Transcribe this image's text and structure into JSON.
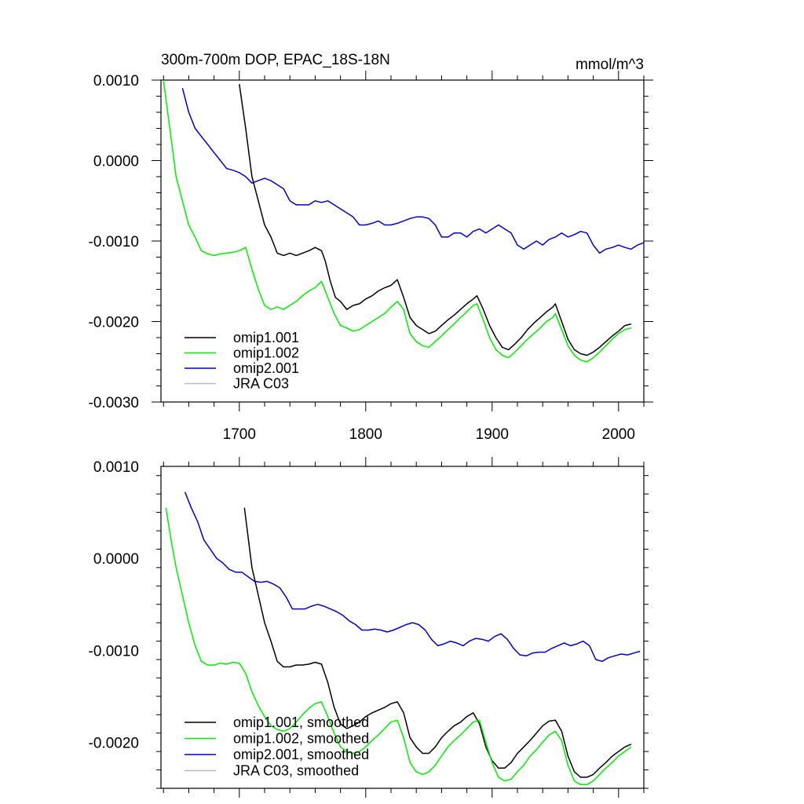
{
  "chart_data": [
    {
      "type": "line",
      "title": "300m-700m DOP, EPAC_18S-18N",
      "units": "mmol/m^3",
      "xlabel": "",
      "ylabel": "",
      "xlim": [
        1638,
        2020
      ],
      "ylim": [
        -0.003,
        0.001
      ],
      "x_ticks": [
        1700,
        1800,
        1900,
        2000
      ],
      "y_ticks": [
        "0.0010",
        "0.0000",
        "-0.0010",
        "-0.0020",
        "-0.0030"
      ],
      "y_tick_values": [
        0.001,
        0.0,
        -0.001,
        -0.002,
        -0.003
      ],
      "grid": false,
      "legend_position": "bottom-left",
      "series": [
        {
          "name": "omip1.001",
          "color": "#000000",
          "x": [
            1700,
            1705,
            1710,
            1715,
            1720,
            1725,
            1730,
            1735,
            1740,
            1745,
            1750,
            1755,
            1760,
            1765,
            1768,
            1772,
            1776,
            1780,
            1785,
            1790,
            1795,
            1800,
            1805,
            1810,
            1815,
            1820,
            1825,
            1830,
            1835,
            1840,
            1845,
            1850,
            1855,
            1860,
            1865,
            1870,
            1875,
            1880,
            1885,
            1888,
            1893,
            1898,
            1903,
            1908,
            1913,
            1918,
            1923,
            1928,
            1933,
            1938,
            1943,
            1948,
            1950,
            1955,
            1960,
            1965,
            1970,
            1975,
            1980,
            1985,
            1990,
            1995,
            2000,
            2005,
            2010
          ],
          "y": [
            0.00095,
            0.0004,
            -0.0002,
            -0.0005,
            -0.0008,
            -0.00095,
            -0.00115,
            -0.00118,
            -0.00115,
            -0.00118,
            -0.00115,
            -0.00112,
            -0.00108,
            -0.00112,
            -0.00125,
            -0.0015,
            -0.0017,
            -0.00175,
            -0.00185,
            -0.0018,
            -0.00178,
            -0.00172,
            -0.00168,
            -0.00162,
            -0.00158,
            -0.00155,
            -0.00148,
            -0.0017,
            -0.00195,
            -0.00205,
            -0.0021,
            -0.00215,
            -0.00212,
            -0.00205,
            -0.00198,
            -0.00192,
            -0.00185,
            -0.00178,
            -0.00172,
            -0.00168,
            -0.00185,
            -0.00205,
            -0.0022,
            -0.00232,
            -0.00235,
            -0.00228,
            -0.0022,
            -0.0021,
            -0.00202,
            -0.00195,
            -0.00188,
            -0.00182,
            -0.00178,
            -0.002,
            -0.00222,
            -0.00235,
            -0.0024,
            -0.00242,
            -0.00238,
            -0.00232,
            -0.00225,
            -0.00218,
            -0.00212,
            -0.00205,
            -0.00203
          ]
        },
        {
          "name": "omip1.002",
          "color": "#00ee00",
          "x": [
            1640,
            1645,
            1650,
            1655,
            1660,
            1665,
            1670,
            1675,
            1680,
            1685,
            1690,
            1695,
            1700,
            1705,
            1710,
            1715,
            1720,
            1725,
            1730,
            1735,
            1740,
            1745,
            1750,
            1755,
            1760,
            1765,
            1770,
            1775,
            1780,
            1785,
            1790,
            1795,
            1800,
            1805,
            1810,
            1815,
            1820,
            1825,
            1830,
            1835,
            1840,
            1845,
            1850,
            1855,
            1860,
            1865,
            1870,
            1875,
            1880,
            1885,
            1888,
            1893,
            1898,
            1903,
            1908,
            1913,
            1918,
            1923,
            1928,
            1933,
            1938,
            1943,
            1948,
            1950,
            1955,
            1960,
            1965,
            1970,
            1975,
            1980,
            1985,
            1990,
            1995,
            2000,
            2005,
            2010
          ],
          "y": [
            0.001,
            0.0004,
            -0.0002,
            -0.0005,
            -0.0008,
            -0.00095,
            -0.00112,
            -0.00116,
            -0.00118,
            -0.00116,
            -0.00115,
            -0.00114,
            -0.00112,
            -0.00108,
            -0.00135,
            -0.0016,
            -0.0018,
            -0.00185,
            -0.00182,
            -0.00185,
            -0.0018,
            -0.00175,
            -0.00168,
            -0.00162,
            -0.00158,
            -0.0015,
            -0.0017,
            -0.0019,
            -0.00205,
            -0.00208,
            -0.00212,
            -0.0021,
            -0.00205,
            -0.002,
            -0.00195,
            -0.0019,
            -0.00182,
            -0.00175,
            -0.00185,
            -0.00215,
            -0.00225,
            -0.0023,
            -0.00232,
            -0.00225,
            -0.00218,
            -0.0021,
            -0.00203,
            -0.00195,
            -0.00188,
            -0.0018,
            -0.00178,
            -0.00198,
            -0.0022,
            -0.00235,
            -0.00242,
            -0.00245,
            -0.00238,
            -0.0023,
            -0.00222,
            -0.00215,
            -0.00208,
            -0.002,
            -0.00195,
            -0.0019,
            -0.0021,
            -0.0023,
            -0.00242,
            -0.00248,
            -0.0025,
            -0.00245,
            -0.00238,
            -0.0023,
            -0.00222,
            -0.00215,
            -0.0021,
            -0.00208
          ]
        },
        {
          "name": "omip2.001",
          "color": "#0000cc",
          "x": [
            1655,
            1660,
            1665,
            1670,
            1675,
            1680,
            1685,
            1690,
            1695,
            1700,
            1705,
            1710,
            1715,
            1720,
            1725,
            1730,
            1735,
            1740,
            1745,
            1750,
            1755,
            1760,
            1765,
            1770,
            1775,
            1780,
            1785,
            1790,
            1795,
            1800,
            1805,
            1810,
            1815,
            1820,
            1825,
            1830,
            1835,
            1840,
            1845,
            1850,
            1855,
            1860,
            1865,
            1870,
            1875,
            1880,
            1885,
            1890,
            1895,
            1900,
            1905,
            1910,
            1915,
            1920,
            1925,
            1930,
            1935,
            1940,
            1945,
            1950,
            1955,
            1960,
            1965,
            1970,
            1975,
            1980,
            1985,
            1990,
            1995,
            2000,
            2005,
            2010,
            2015,
            2020
          ],
          "y": [
            0.0009,
            0.0006,
            0.0004,
            0.0003,
            0.0002,
            0.0001,
            0.0,
            -0.0001,
            -0.00012,
            -0.00015,
            -0.0002,
            -0.00028,
            -0.00025,
            -0.00022,
            -0.00025,
            -0.0003,
            -0.00035,
            -0.0005,
            -0.00055,
            -0.00055,
            -0.00055,
            -0.0005,
            -0.00052,
            -0.0005,
            -0.00055,
            -0.0006,
            -0.00065,
            -0.0007,
            -0.0008,
            -0.0008,
            -0.00078,
            -0.00075,
            -0.0008,
            -0.0008,
            -0.00078,
            -0.00075,
            -0.00072,
            -0.0007,
            -0.0007,
            -0.00072,
            -0.0008,
            -0.00095,
            -0.00095,
            -0.0009,
            -0.0009,
            -0.00095,
            -0.00088,
            -0.00085,
            -0.0009,
            -0.00085,
            -0.0008,
            -0.00085,
            -0.0009,
            -0.00105,
            -0.0011,
            -0.00105,
            -0.001,
            -0.00105,
            -0.00098,
            -0.00095,
            -0.0009,
            -0.00095,
            -0.00092,
            -0.00088,
            -0.0009,
            -0.00105,
            -0.00115,
            -0.0011,
            -0.00108,
            -0.00105,
            -0.00108,
            -0.0011,
            -0.00105,
            -0.00102
          ]
        },
        {
          "name": "JRA C03",
          "color": "#bbbbbb",
          "x": [],
          "y": []
        }
      ]
    },
    {
      "type": "line",
      "title": "",
      "xlabel": "",
      "ylabel": "",
      "xlim": [
        1638,
        2020
      ],
      "ylim": [
        -0.0025,
        0.001
      ],
      "x_ticks": [
        1700,
        1800,
        1900,
        2000
      ],
      "y_ticks": [
        "0.0010",
        "0.0000",
        "-0.0010",
        "-0.0020"
      ],
      "y_tick_values": [
        0.001,
        0.0,
        -0.001,
        -0.002
      ],
      "grid": false,
      "legend_position": "bottom-left",
      "series": [
        {
          "name": "omip1.001, smoothed",
          "color": "#000000",
          "x": [
            1704,
            1710,
            1715,
            1720,
            1725,
            1730,
            1735,
            1740,
            1745,
            1750,
            1755,
            1760,
            1765,
            1770,
            1775,
            1780,
            1785,
            1790,
            1795,
            1800,
            1805,
            1810,
            1815,
            1820,
            1825,
            1830,
            1835,
            1840,
            1845,
            1850,
            1855,
            1860,
            1865,
            1870,
            1875,
            1880,
            1885,
            1890,
            1895,
            1900,
            1905,
            1910,
            1915,
            1920,
            1925,
            1930,
            1935,
            1940,
            1945,
            1950,
            1955,
            1960,
            1965,
            1970,
            1975,
            1980,
            1985,
            1990,
            1995,
            2000,
            2005,
            2010
          ],
          "y": [
            0.00055,
            -0.0001,
            -0.0004,
            -0.0007,
            -0.0009,
            -0.00112,
            -0.00118,
            -0.00118,
            -0.00116,
            -0.00116,
            -0.00115,
            -0.00113,
            -0.00115,
            -0.00135,
            -0.00162,
            -0.0018,
            -0.00185,
            -0.00182,
            -0.00178,
            -0.00172,
            -0.00168,
            -0.00165,
            -0.00162,
            -0.00158,
            -0.00156,
            -0.00168,
            -0.00195,
            -0.00205,
            -0.00212,
            -0.00212,
            -0.00205,
            -0.00195,
            -0.00188,
            -0.00182,
            -0.00178,
            -0.00172,
            -0.00168,
            -0.0018,
            -0.00205,
            -0.0022,
            -0.00228,
            -0.00228,
            -0.00222,
            -0.00212,
            -0.00205,
            -0.00198,
            -0.0019,
            -0.00182,
            -0.00177,
            -0.00176,
            -0.00188,
            -0.00215,
            -0.00232,
            -0.00238,
            -0.00238,
            -0.00235,
            -0.00228,
            -0.00222,
            -0.00215,
            -0.0021,
            -0.00205,
            -0.00202
          ]
        },
        {
          "name": "omip1.002, smoothed",
          "color": "#00ee00",
          "x": [
            1642,
            1646,
            1650,
            1655,
            1660,
            1665,
            1670,
            1675,
            1680,
            1685,
            1690,
            1695,
            1700,
            1705,
            1710,
            1715,
            1720,
            1725,
            1730,
            1735,
            1740,
            1745,
            1750,
            1755,
            1760,
            1765,
            1770,
            1775,
            1780,
            1785,
            1790,
            1795,
            1800,
            1805,
            1810,
            1815,
            1820,
            1825,
            1830,
            1835,
            1840,
            1845,
            1850,
            1855,
            1860,
            1865,
            1870,
            1875,
            1880,
            1885,
            1890,
            1895,
            1900,
            1905,
            1910,
            1915,
            1920,
            1925,
            1930,
            1935,
            1940,
            1945,
            1950,
            1955,
            1960,
            1965,
            1970,
            1975,
            1980,
            1985,
            1990,
            1995,
            2000,
            2005,
            2010
          ],
          "y": [
            0.00055,
            0.0002,
            -0.0001,
            -0.0004,
            -0.0007,
            -0.00095,
            -0.00112,
            -0.00116,
            -0.00116,
            -0.00114,
            -0.00115,
            -0.00113,
            -0.00114,
            -0.00125,
            -0.00145,
            -0.0016,
            -0.00172,
            -0.00182,
            -0.00186,
            -0.00188,
            -0.00185,
            -0.00178,
            -0.0017,
            -0.00163,
            -0.00158,
            -0.00156,
            -0.00172,
            -0.0019,
            -0.00205,
            -0.0021,
            -0.00212,
            -0.0021,
            -0.00205,
            -0.00198,
            -0.00192,
            -0.00185,
            -0.00178,
            -0.00176,
            -0.00195,
            -0.00222,
            -0.00232,
            -0.00235,
            -0.00232,
            -0.00225,
            -0.00215,
            -0.00205,
            -0.00198,
            -0.00192,
            -0.00185,
            -0.00178,
            -0.00176,
            -0.002,
            -0.00222,
            -0.00238,
            -0.00242,
            -0.0024,
            -0.00232,
            -0.00225,
            -0.00215,
            -0.00208,
            -0.002,
            -0.00192,
            -0.00188,
            -0.00198,
            -0.00225,
            -0.00242,
            -0.00246,
            -0.00246,
            -0.00242,
            -0.00235,
            -0.00228,
            -0.00222,
            -0.00215,
            -0.0021,
            -0.00205
          ]
        },
        {
          "name": "omip2.001, smoothed",
          "color": "#0000cc",
          "x": [
            1657,
            1662,
            1667,
            1672,
            1677,
            1682,
            1687,
            1692,
            1697,
            1702,
            1707,
            1712,
            1717,
            1722,
            1727,
            1732,
            1737,
            1742,
            1747,
            1752,
            1757,
            1762,
            1767,
            1772,
            1777,
            1782,
            1787,
            1792,
            1797,
            1802,
            1807,
            1812,
            1817,
            1822,
            1827,
            1832,
            1837,
            1842,
            1847,
            1852,
            1857,
            1862,
            1867,
            1872,
            1877,
            1882,
            1887,
            1892,
            1897,
            1902,
            1907,
            1912,
            1917,
            1922,
            1927,
            1932,
            1937,
            1942,
            1947,
            1952,
            1957,
            1962,
            1967,
            1972,
            1977,
            1982,
            1987,
            1992,
            1997,
            2002,
            2007,
            2012,
            2017
          ],
          "y": [
            0.00072,
            0.00055,
            0.0004,
            0.0002,
            0.0001,
            0.0,
            -5e-05,
            -0.00012,
            -0.00015,
            -0.00015,
            -0.0002,
            -0.00025,
            -0.00026,
            -0.00025,
            -0.00028,
            -0.00032,
            -0.00042,
            -0.00055,
            -0.00055,
            -0.00055,
            -0.00052,
            -0.0005,
            -0.00052,
            -0.00055,
            -0.00058,
            -0.00062,
            -0.00068,
            -0.00072,
            -0.00078,
            -0.00078,
            -0.00077,
            -0.00078,
            -0.0008,
            -0.00078,
            -0.00075,
            -0.00072,
            -0.0007,
            -0.00072,
            -0.00078,
            -0.00088,
            -0.00095,
            -0.00093,
            -0.0009,
            -0.00092,
            -0.00095,
            -0.0009,
            -0.00087,
            -0.00088,
            -0.0009,
            -0.00085,
            -0.00082,
            -0.00088,
            -0.00098,
            -0.00105,
            -0.00106,
            -0.00103,
            -0.00102,
            -0.00102,
            -0.00098,
            -0.00095,
            -0.00092,
            -0.00095,
            -0.00093,
            -0.0009,
            -0.00095,
            -0.0011,
            -0.00112,
            -0.00108,
            -0.00106,
            -0.00104,
            -0.00105,
            -0.00103,
            -0.00101
          ]
        },
        {
          "name": "JRA C03, smoothed",
          "color": "#bbbbbb",
          "x": [],
          "y": []
        }
      ]
    }
  ]
}
